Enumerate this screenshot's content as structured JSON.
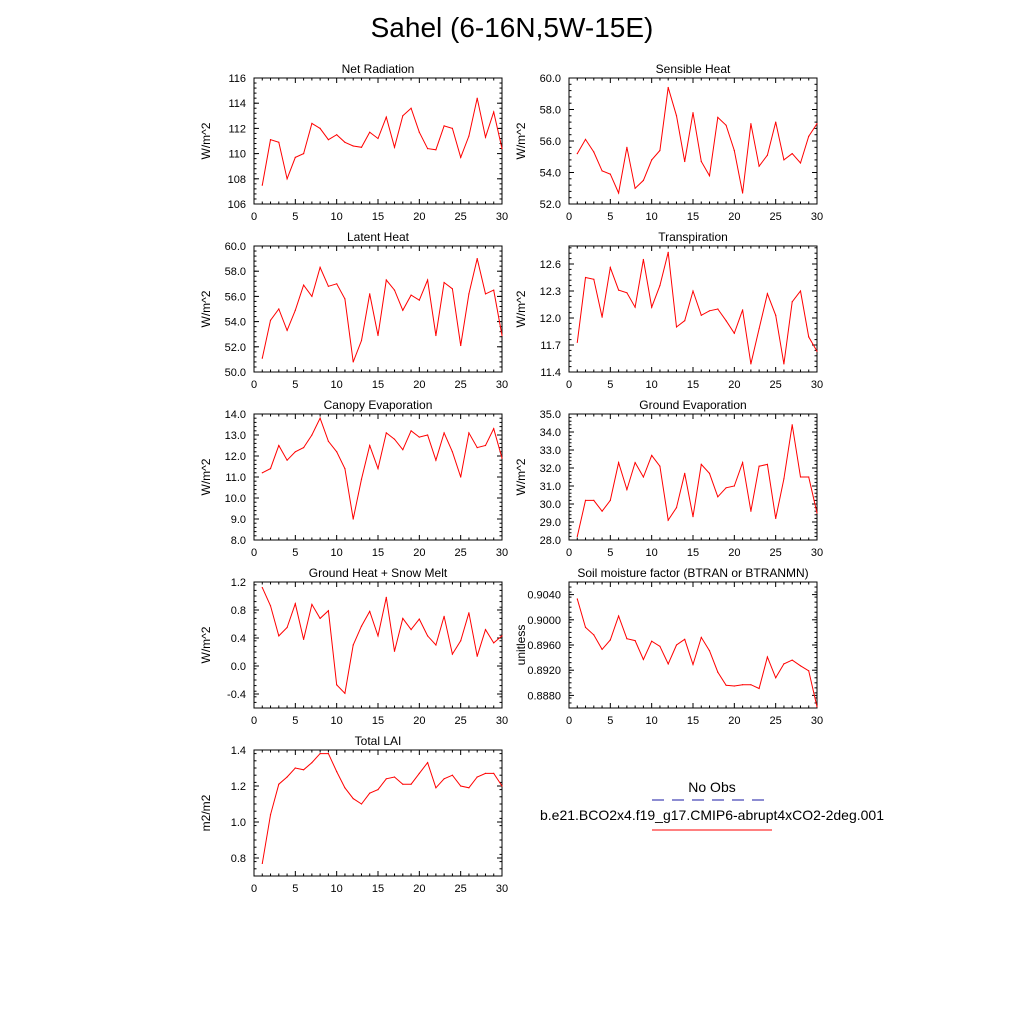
{
  "title": "Sahel (6-16N,5W-15E)",
  "legend": {
    "entries": [
      {
        "label": "No Obs",
        "color": "#1a1aa6",
        "dash": true
      },
      {
        "label": "b.e21.BCO2x4.f19_g17.CMIP6-abrupt4xCO2-2deg.001",
        "color": "#ff0000",
        "dash": false
      }
    ]
  },
  "chart_data": [
    {
      "type": "line",
      "title": "Net Radiation",
      "ylabel": "W/m^2",
      "xlim": [
        0,
        30
      ],
      "ylim": [
        106,
        116
      ],
      "xticks": [
        "0",
        "5",
        "10",
        "15",
        "20",
        "25",
        "30"
      ],
      "yticks": [
        "106",
        "108",
        "110",
        "112",
        "114",
        "116"
      ],
      "series": [
        {
          "color": "#ff0000",
          "x": [
            1,
            2,
            3,
            4,
            5,
            6,
            7,
            8,
            9,
            10,
            11,
            12,
            13,
            14,
            15,
            16,
            17,
            18,
            19,
            20,
            21,
            22,
            23,
            24,
            25,
            26,
            27,
            28,
            29,
            30
          ],
          "values": [
            107.5,
            111.1,
            110.9,
            108.0,
            109.7,
            110.0,
            112.4,
            112.0,
            111.1,
            111.5,
            110.9,
            110.6,
            110.5,
            111.7,
            111.2,
            112.9,
            110.5,
            113.0,
            113.6,
            111.7,
            110.4,
            110.3,
            112.2,
            112.0,
            109.7,
            111.4,
            114.4,
            111.3,
            113.3,
            110.4
          ]
        }
      ]
    },
    {
      "type": "line",
      "title": "Sensible Heat",
      "ylabel": "W/m^2",
      "xlim": [
        0,
        30
      ],
      "ylim": [
        52,
        60
      ],
      "xticks": [
        "0",
        "5",
        "10",
        "15",
        "20",
        "25",
        "30"
      ],
      "yticks": [
        "52.0",
        "54.0",
        "56.0",
        "58.0",
        "60.0"
      ],
      "series": [
        {
          "color": "#ff0000",
          "x": [
            1,
            2,
            3,
            4,
            5,
            6,
            7,
            8,
            9,
            10,
            11,
            12,
            13,
            14,
            15,
            16,
            17,
            18,
            19,
            20,
            21,
            22,
            23,
            24,
            25,
            26,
            27,
            28,
            29,
            30
          ],
          "values": [
            55.2,
            56.1,
            55.3,
            54.1,
            53.9,
            52.7,
            55.6,
            53.0,
            53.5,
            54.8,
            55.4,
            59.4,
            57.6,
            54.7,
            57.8,
            54.7,
            53.8,
            57.5,
            57.0,
            55.4,
            52.7,
            57.1,
            54.4,
            55.1,
            57.2,
            54.8,
            55.2,
            54.6,
            56.3,
            57.1
          ]
        }
      ]
    },
    {
      "type": "line",
      "title": "Latent Heat",
      "ylabel": "W/m^2",
      "xlim": [
        0,
        30
      ],
      "ylim": [
        50,
        60
      ],
      "xticks": [
        "0",
        "5",
        "10",
        "15",
        "20",
        "25",
        "30"
      ],
      "yticks": [
        "50.0",
        "52.0",
        "54.0",
        "56.0",
        "58.0",
        "60.0"
      ],
      "series": [
        {
          "color": "#ff0000",
          "x": [
            1,
            2,
            3,
            4,
            5,
            6,
            7,
            8,
            9,
            10,
            11,
            12,
            13,
            14,
            15,
            16,
            17,
            18,
            19,
            20,
            21,
            22,
            23,
            24,
            25,
            26,
            27,
            28,
            29,
            30
          ],
          "values": [
            51.1,
            54.1,
            55.0,
            53.3,
            54.9,
            56.9,
            56.0,
            58.3,
            56.8,
            57.0,
            55.8,
            50.8,
            52.5,
            56.2,
            52.9,
            57.3,
            56.5,
            54.9,
            56.1,
            55.7,
            57.3,
            52.9,
            57.1,
            56.6,
            52.1,
            56.2,
            59.0,
            56.2,
            56.5,
            52.9
          ]
        }
      ]
    },
    {
      "type": "line",
      "title": "Transpiration",
      "ylabel": "W/m^2",
      "xlim": [
        0,
        30
      ],
      "ylim": [
        11.4,
        12.8
      ],
      "xticks": [
        "0",
        "5",
        "10",
        "15",
        "20",
        "25",
        "30"
      ],
      "yticks": [
        "11.4",
        "11.7",
        "12.0",
        "12.3",
        "12.6"
      ],
      "series": [
        {
          "color": "#ff0000",
          "x": [
            1,
            2,
            3,
            4,
            5,
            6,
            7,
            8,
            9,
            10,
            11,
            12,
            13,
            14,
            15,
            16,
            17,
            18,
            19,
            20,
            21,
            22,
            23,
            24,
            25,
            26,
            27,
            28,
            29,
            30
          ],
          "values": [
            11.73,
            12.45,
            12.43,
            12.01,
            12.56,
            12.31,
            12.28,
            12.12,
            12.65,
            12.12,
            12.36,
            12.73,
            11.9,
            11.97,
            12.3,
            12.03,
            12.08,
            12.1,
            11.97,
            11.83,
            12.09,
            11.49,
            11.88,
            12.27,
            12.03,
            11.49,
            12.18,
            12.3,
            11.79,
            11.63
          ]
        }
      ]
    },
    {
      "type": "line",
      "title": "Canopy Evaporation",
      "ylabel": "W/m^2",
      "xlim": [
        0,
        30
      ],
      "ylim": [
        8,
        14
      ],
      "xticks": [
        "0",
        "5",
        "10",
        "15",
        "20",
        "25",
        "30"
      ],
      "yticks": [
        "8.0",
        "9.0",
        "10.0",
        "11.0",
        "12.0",
        "13.0",
        "14.0"
      ],
      "series": [
        {
          "color": "#ff0000",
          "x": [
            1,
            2,
            3,
            4,
            5,
            6,
            7,
            8,
            9,
            10,
            11,
            12,
            13,
            14,
            15,
            16,
            17,
            18,
            19,
            20,
            21,
            22,
            23,
            24,
            25,
            26,
            27,
            28,
            29,
            30
          ],
          "values": [
            11.2,
            11.4,
            12.5,
            11.8,
            12.2,
            12.4,
            13.0,
            13.8,
            12.7,
            12.2,
            11.4,
            9.0,
            10.9,
            12.5,
            11.4,
            13.1,
            12.8,
            12.3,
            13.2,
            12.9,
            13.0,
            11.8,
            13.1,
            12.2,
            11.0,
            13.1,
            12.4,
            12.5,
            13.3,
            11.9
          ]
        }
      ]
    },
    {
      "type": "line",
      "title": "Ground Evaporation",
      "ylabel": "W/m^2",
      "xlim": [
        0,
        30
      ],
      "ylim": [
        28,
        35
      ],
      "xticks": [
        "0",
        "5",
        "10",
        "15",
        "20",
        "25",
        "30"
      ],
      "yticks": [
        "28.0",
        "29.0",
        "30.0",
        "31.0",
        "32.0",
        "33.0",
        "34.0",
        "35.0"
      ],
      "series": [
        {
          "color": "#ff0000",
          "x": [
            1,
            2,
            3,
            4,
            5,
            6,
            7,
            8,
            9,
            10,
            11,
            12,
            13,
            14,
            15,
            16,
            17,
            18,
            19,
            20,
            21,
            22,
            23,
            24,
            25,
            26,
            27,
            28,
            29,
            30
          ],
          "values": [
            28.2,
            30.2,
            30.2,
            29.6,
            30.2,
            32.3,
            30.8,
            32.3,
            31.5,
            32.7,
            32.1,
            29.1,
            29.8,
            31.7,
            29.3,
            32.2,
            31.7,
            30.4,
            30.9,
            31.0,
            32.3,
            29.6,
            32.1,
            32.2,
            29.2,
            31.4,
            34.4,
            31.5,
            31.5,
            29.5
          ]
        }
      ]
    },
    {
      "type": "line",
      "title": "Ground Heat + Snow Melt",
      "ylabel": "W/m^2",
      "xlim": [
        0,
        30
      ],
      "ylim": [
        -0.6,
        1.2
      ],
      "xticks": [
        "0",
        "5",
        "10",
        "15",
        "20",
        "25",
        "30"
      ],
      "yticks": [
        "-0.4",
        "0.0",
        "0.4",
        "0.8",
        "1.2"
      ],
      "series": [
        {
          "color": "#ff0000",
          "x": [
            1,
            2,
            3,
            4,
            5,
            6,
            7,
            8,
            9,
            10,
            11,
            12,
            13,
            14,
            15,
            16,
            17,
            18,
            19,
            20,
            21,
            22,
            23,
            24,
            25,
            26,
            27,
            28,
            29,
            30
          ],
          "values": [
            1.12,
            0.86,
            0.43,
            0.55,
            0.89,
            0.38,
            0.88,
            0.68,
            0.79,
            -0.27,
            -0.39,
            0.3,
            0.57,
            0.78,
            0.43,
            0.98,
            0.21,
            0.68,
            0.52,
            0.67,
            0.43,
            0.3,
            0.71,
            0.17,
            0.36,
            0.76,
            0.14,
            0.52,
            0.33,
            0.43
          ]
        }
      ]
    },
    {
      "type": "line",
      "title": "Soil moisture factor (BTRAN or BTRANMN)",
      "ylabel": "unitless",
      "xlim": [
        0,
        30
      ],
      "ylim": [
        0.886,
        0.906
      ],
      "xticks": [
        "0",
        "5",
        "10",
        "15",
        "20",
        "25",
        "30"
      ],
      "yticks": [
        "0.8880",
        "0.8920",
        "0.8960",
        "0.9000",
        "0.9040"
      ],
      "series": [
        {
          "color": "#ff0000",
          "x": [
            1,
            2,
            3,
            4,
            5,
            6,
            7,
            8,
            9,
            10,
            11,
            12,
            13,
            14,
            15,
            16,
            17,
            18,
            19,
            20,
            21,
            22,
            23,
            24,
            25,
            26,
            27,
            28,
            29,
            30
          ],
          "values": [
            0.9033,
            0.8988,
            0.8976,
            0.8953,
            0.8968,
            0.9006,
            0.897,
            0.8967,
            0.8937,
            0.8966,
            0.8958,
            0.893,
            0.896,
            0.8969,
            0.8929,
            0.8972,
            0.8951,
            0.8917,
            0.8896,
            0.8895,
            0.8897,
            0.8897,
            0.8891,
            0.8941,
            0.8908,
            0.893,
            0.8936,
            0.8927,
            0.8919,
            0.8862
          ]
        }
      ]
    },
    {
      "type": "line",
      "title": "Total LAI",
      "ylabel": "m2/m2",
      "xlim": [
        0,
        30
      ],
      "ylim": [
        0.7,
        1.4
      ],
      "xticks": [
        "0",
        "5",
        "10",
        "15",
        "20",
        "25",
        "30"
      ],
      "yticks": [
        "0.8",
        "1.0",
        "1.2",
        "1.4"
      ],
      "series": [
        {
          "color": "#ff0000",
          "x": [
            1,
            2,
            3,
            4,
            5,
            6,
            7,
            8,
            9,
            10,
            11,
            12,
            13,
            14,
            15,
            16,
            17,
            18,
            19,
            20,
            21,
            22,
            23,
            24,
            25,
            26,
            27,
            28,
            29,
            30
          ],
          "values": [
            0.77,
            1.04,
            1.21,
            1.25,
            1.3,
            1.29,
            1.33,
            1.38,
            1.38,
            1.28,
            1.19,
            1.13,
            1.1,
            1.16,
            1.18,
            1.24,
            1.25,
            1.21,
            1.21,
            1.27,
            1.33,
            1.19,
            1.24,
            1.26,
            1.2,
            1.19,
            1.25,
            1.27,
            1.27,
            1.2
          ]
        }
      ]
    }
  ]
}
